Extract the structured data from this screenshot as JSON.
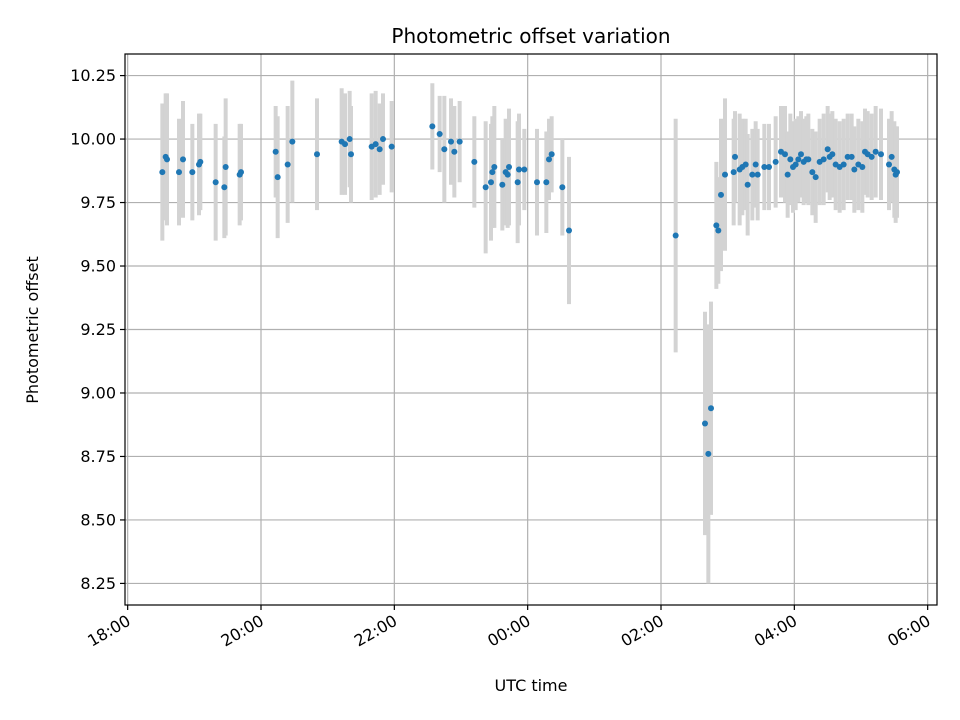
{
  "chart_data": {
    "type": "scatter",
    "title": "Photometric offset variation",
    "xlabel": "UTC time",
    "ylabel": "Photometric offset",
    "xlim": [
      17.96,
      30.14
    ],
    "ylim": [
      8.165,
      10.335
    ],
    "grid": true,
    "x_unit": "hours since 00:00 of first day (values above 24 wrap to next day)",
    "x_ticks": [
      18,
      20,
      22,
      24,
      26,
      28,
      30
    ],
    "x_tick_labels": [
      "18:00",
      "20:00",
      "22:00",
      "00:00",
      "02:00",
      "04:00",
      "06:00"
    ],
    "y_ticks": [
      8.25,
      8.5,
      8.75,
      9.0,
      9.25,
      9.5,
      9.75,
      10.0,
      10.25
    ],
    "y_tick_labels": [
      "8.25",
      "8.50",
      "8.75",
      "9.00",
      "9.25",
      "9.50",
      "9.75",
      "10.00",
      "10.25"
    ],
    "colors": {
      "point": "#1f77b4",
      "errorbar": "#d3d3d3",
      "grid": "#b0b0b0"
    },
    "series": [
      {
        "name": "offset",
        "points": [
          [
            18.52,
            9.87,
            0.27
          ],
          [
            18.57,
            9.93,
            0.25
          ],
          [
            18.59,
            9.92,
            0.26
          ],
          [
            18.77,
            9.87,
            0.21
          ],
          [
            18.83,
            9.92,
            0.23
          ],
          [
            18.97,
            9.87,
            0.19
          ],
          [
            19.07,
            9.9,
            0.2
          ],
          [
            19.09,
            9.91,
            0.19
          ],
          [
            19.32,
            9.83,
            0.23
          ],
          [
            19.45,
            9.81,
            0.2
          ],
          [
            19.47,
            9.89,
            0.27
          ],
          [
            19.68,
            9.86,
            0.2
          ],
          [
            19.7,
            9.87,
            0.19
          ],
          [
            20.22,
            9.95,
            0.18
          ],
          [
            20.25,
            9.85,
            0.24
          ],
          [
            20.4,
            9.9,
            0.23
          ],
          [
            20.47,
            9.99,
            0.24
          ],
          [
            20.84,
            9.94,
            0.22
          ],
          [
            21.21,
            9.99,
            0.21
          ],
          [
            21.26,
            9.98,
            0.2
          ],
          [
            21.33,
            10.0,
            0.19
          ],
          [
            21.35,
            9.94,
            0.19
          ],
          [
            21.66,
            9.97,
            0.21
          ],
          [
            21.72,
            9.98,
            0.21
          ],
          [
            21.78,
            9.96,
            0.18
          ],
          [
            21.83,
            10.0,
            0.18
          ],
          [
            21.96,
            9.97,
            0.18
          ],
          [
            22.57,
            10.05,
            0.17
          ],
          [
            22.68,
            10.02,
            0.15
          ],
          [
            22.75,
            9.96,
            0.21
          ],
          [
            22.85,
            9.99,
            0.17
          ],
          [
            22.9,
            9.95,
            0.18
          ],
          [
            22.98,
            9.99,
            0.16
          ],
          [
            23.2,
            9.91,
            0.18
          ],
          [
            23.37,
            9.81,
            0.26
          ],
          [
            23.45,
            9.83,
            0.23
          ],
          [
            23.47,
            9.87,
            0.22
          ],
          [
            23.5,
            9.89,
            0.24
          ],
          [
            23.62,
            9.82,
            0.18
          ],
          [
            23.67,
            9.87,
            0.21
          ],
          [
            23.7,
            9.86,
            0.21
          ],
          [
            23.72,
            9.89,
            0.23
          ],
          [
            23.85,
            9.83,
            0.24
          ],
          [
            23.87,
            9.88,
            0.22
          ],
          [
            23.95,
            9.88,
            0.16
          ],
          [
            24.14,
            9.83,
            0.21
          ],
          [
            24.28,
            9.83,
            0.2
          ],
          [
            24.32,
            9.92,
            0.16
          ],
          [
            24.36,
            9.94,
            0.15
          ],
          [
            24.52,
            9.81,
            0.19
          ],
          [
            24.62,
            9.64,
            0.29
          ],
          [
            26.22,
            9.62,
            0.46
          ],
          [
            26.66,
            8.88,
            0.44
          ],
          [
            26.71,
            8.76,
            0.51
          ],
          [
            26.75,
            8.94,
            0.42
          ],
          [
            26.83,
            9.66,
            0.25
          ],
          [
            26.86,
            9.64,
            0.21
          ],
          [
            26.9,
            9.78,
            0.3
          ],
          [
            26.96,
            9.86,
            0.3
          ],
          [
            27.09,
            9.87,
            0.21
          ],
          [
            27.11,
            9.93,
            0.18
          ],
          [
            27.18,
            9.88,
            0.22
          ],
          [
            27.22,
            9.89,
            0.19
          ],
          [
            27.27,
            9.9,
            0.18
          ],
          [
            27.3,
            9.82,
            0.2
          ],
          [
            27.37,
            9.86,
            0.18
          ],
          [
            27.42,
            9.9,
            0.17
          ],
          [
            27.45,
            9.86,
            0.18
          ],
          [
            27.55,
            9.89,
            0.17
          ],
          [
            27.62,
            9.89,
            0.17
          ],
          [
            27.72,
            9.91,
            0.18
          ],
          [
            27.8,
            9.95,
            0.18
          ],
          [
            27.86,
            9.94,
            0.19
          ],
          [
            27.9,
            9.86,
            0.17
          ],
          [
            27.94,
            9.92,
            0.18
          ],
          [
            27.98,
            9.89,
            0.18
          ],
          [
            28.02,
            9.9,
            0.18
          ],
          [
            28.06,
            9.92,
            0.17
          ],
          [
            28.1,
            9.94,
            0.17
          ],
          [
            28.14,
            9.91,
            0.17
          ],
          [
            28.18,
            9.92,
            0.17
          ],
          [
            28.21,
            9.92,
            0.18
          ],
          [
            28.27,
            9.87,
            0.17
          ],
          [
            28.32,
            9.85,
            0.18
          ],
          [
            28.38,
            9.91,
            0.17
          ],
          [
            28.44,
            9.92,
            0.18
          ],
          [
            28.5,
            9.96,
            0.17
          ],
          [
            28.53,
            9.93,
            0.17
          ],
          [
            28.57,
            9.94,
            0.17
          ],
          [
            28.62,
            9.9,
            0.18
          ],
          [
            28.68,
            9.89,
            0.18
          ],
          [
            28.74,
            9.9,
            0.18
          ],
          [
            28.8,
            9.93,
            0.17
          ],
          [
            28.86,
            9.93,
            0.17
          ],
          [
            28.9,
            9.88,
            0.17
          ],
          [
            28.96,
            9.9,
            0.18
          ],
          [
            29.02,
            9.89,
            0.18
          ],
          [
            29.06,
            9.95,
            0.17
          ],
          [
            29.1,
            9.94,
            0.17
          ],
          [
            29.16,
            9.93,
            0.17
          ],
          [
            29.22,
            9.95,
            0.18
          ],
          [
            29.3,
            9.94,
            0.18
          ],
          [
            29.42,
            9.9,
            0.18
          ],
          [
            29.46,
            9.93,
            0.18
          ],
          [
            29.5,
            9.88,
            0.19
          ],
          [
            29.52,
            9.86,
            0.19
          ],
          [
            29.54,
            9.87,
            0.18
          ]
        ]
      }
    ]
  }
}
